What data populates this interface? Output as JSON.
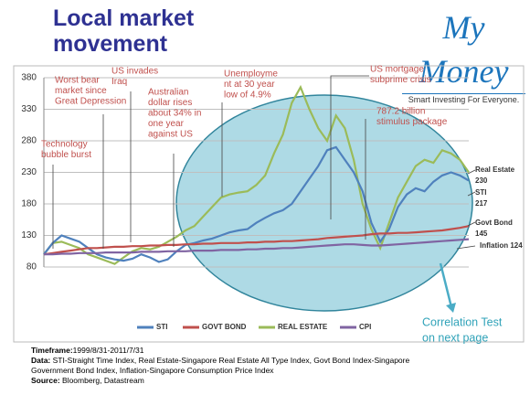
{
  "title": "Local market movement",
  "logo": {
    "name": "My Money",
    "tagline": "Smart Investing For Everyone."
  },
  "chart_data": {
    "type": "line",
    "ylim": [
      80,
      380
    ],
    "yticks": [
      80,
      130,
      180,
      230,
      280,
      330,
      380
    ],
    "grid": true,
    "series": [
      {
        "name": "STI",
        "color": "#4f81bd",
        "values": [
          100,
          118,
          130,
          125,
          120,
          110,
          100,
          95,
          92,
          90,
          93,
          100,
          95,
          88,
          92,
          105,
          115,
          118,
          122,
          125,
          130,
          135,
          138,
          140,
          150,
          158,
          165,
          170,
          180,
          200,
          220,
          240,
          265,
          270,
          250,
          230,
          200,
          150,
          120,
          140,
          175,
          195,
          205,
          200,
          215,
          225,
          230,
          225,
          217
        ]
      },
      {
        "name": "GOVT BOND",
        "color": "#c0504d",
        "values": [
          100,
          102,
          104,
          106,
          108,
          110,
          110,
          111,
          112,
          112,
          113,
          113,
          114,
          114,
          115,
          115,
          116,
          116,
          117,
          117,
          118,
          118,
          118,
          119,
          119,
          120,
          120,
          121,
          121,
          122,
          123,
          124,
          126,
          127,
          128,
          129,
          130,
          132,
          133,
          133,
          134,
          134,
          135,
          136,
          137,
          138,
          140,
          142,
          145
        ]
      },
      {
        "name": "REAL ESTATE",
        "color": "#9bbb59",
        "values": [
          100,
          118,
          120,
          115,
          110,
          100,
          95,
          90,
          85,
          95,
          105,
          110,
          108,
          112,
          120,
          128,
          138,
          145,
          160,
          175,
          190,
          195,
          198,
          200,
          210,
          225,
          260,
          290,
          340,
          365,
          330,
          300,
          280,
          320,
          300,
          250,
          180,
          140,
          110,
          150,
          190,
          215,
          240,
          250,
          245,
          265,
          260,
          250,
          230
        ]
      },
      {
        "name": "CPI",
        "color": "#8064a2",
        "values": [
          100,
          100,
          101,
          101,
          102,
          102,
          102,
          103,
          103,
          103,
          103,
          104,
          104,
          104,
          105,
          105,
          105,
          106,
          106,
          106,
          107,
          107,
          107,
          108,
          108,
          109,
          109,
          110,
          110,
          111,
          112,
          113,
          114,
          115,
          116,
          116,
          115,
          114,
          114,
          115,
          116,
          117,
          118,
          119,
          120,
          121,
          122,
          123,
          124
        ]
      }
    ],
    "annotations": [
      {
        "lines": [
          "Technology",
          "bubble burst"
        ]
      },
      {
        "lines": [
          "Worst bear",
          "market since",
          "Great Depression"
        ]
      },
      {
        "lines": [
          "US invades",
          "Iraq"
        ]
      },
      {
        "lines": [
          "Australian",
          "dollar rises",
          "about 34% in",
          "one year",
          "against US"
        ]
      },
      {
        "lines": [
          "Unemployme",
          "nt at 30 year",
          "low of 4.9%"
        ]
      },
      {
        "lines": [
          "US mortgage",
          "subprime crisis"
        ]
      },
      {
        "lines": [
          "787.2 billion",
          "stimulus package"
        ]
      },
      {
        "lines": [
          "Real Estate",
          "230"
        ]
      },
      {
        "lines": [
          "STI",
          "217"
        ]
      },
      {
        "lines": [
          "Govt Bond",
          "145"
        ]
      },
      {
        "lines": [
          "Inflation 124"
        ]
      }
    ],
    "callout": [
      "Correlation Test",
      "on next page"
    ]
  },
  "footer": [
    {
      "label": "Timeframe:",
      "text": "1999/8/31-2011/7/31"
    },
    {
      "label": "Data:",
      "text": " STI-Straight Time Index, Real Estate-Singapore Real Estate All Type Index, Govt Bond Index-Singapore Government Bond Index, Inflation-Singapore Consumption Price Index"
    },
    {
      "label": "Source:",
      "text": " Bloomberg, Datastream"
    }
  ]
}
